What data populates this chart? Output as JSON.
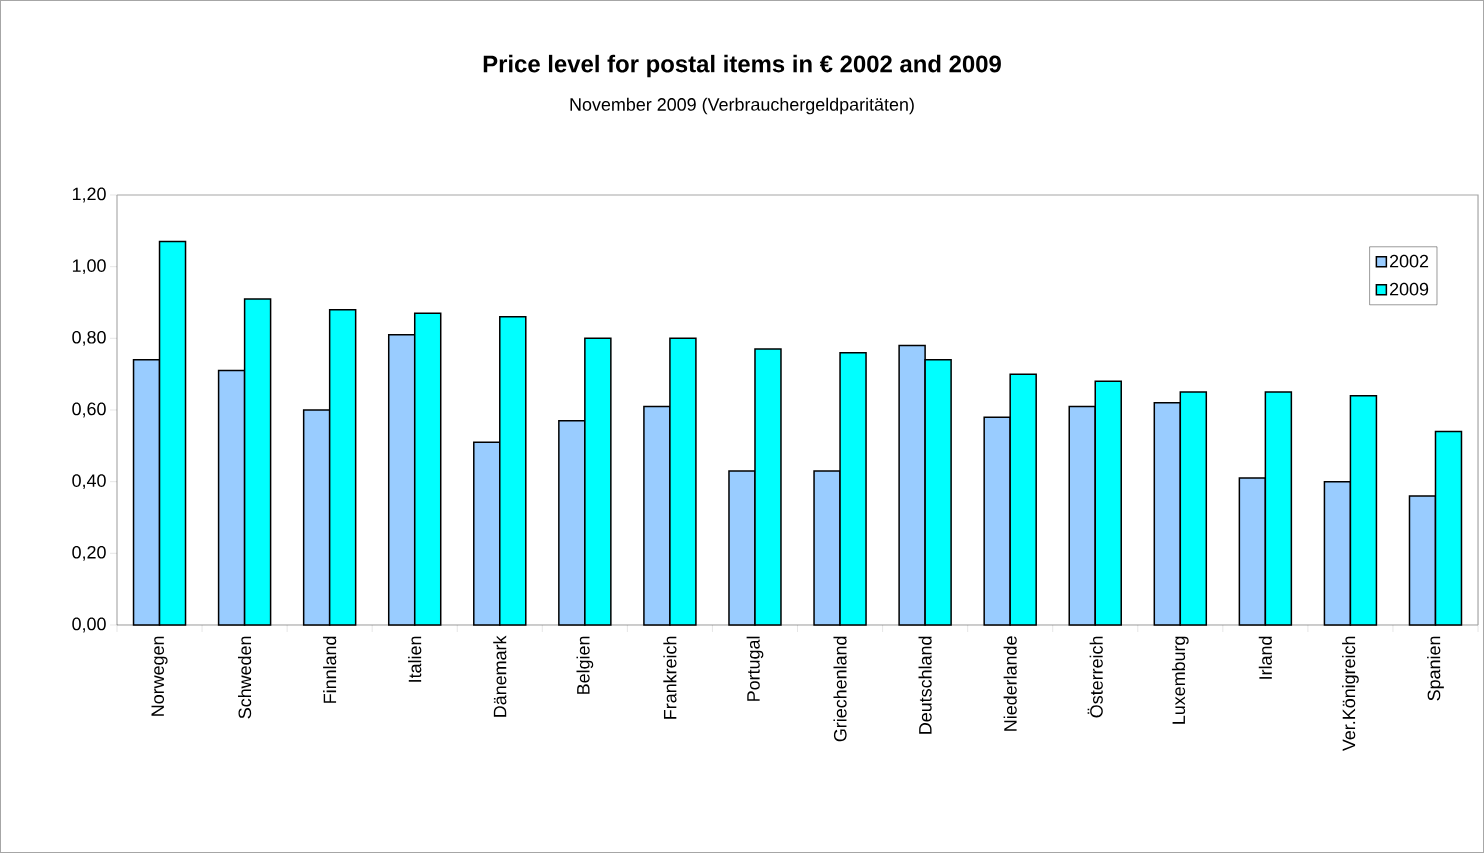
{
  "chart_data": {
    "type": "bar",
    "title": "Price level for postal items in € 2002 and 2009",
    "subtitle": "November 2009 (Verbrauchergeldparitäten)",
    "categories": [
      "Norwegen",
      "Schweden",
      "Finnland",
      "Italien",
      "Dänemark",
      "Belgien",
      "Frankreich",
      "Portugal",
      "Griechenland",
      "Deutschland",
      "Niederlande",
      "Österreich",
      "Luxemburg",
      "Irland",
      "Ver.Königreich",
      "Spanien"
    ],
    "series": [
      {
        "name": "2002",
        "color": "#99ccff",
        "values": [
          0.74,
          0.71,
          0.6,
          0.81,
          0.51,
          0.57,
          0.61,
          0.43,
          0.43,
          0.78,
          0.58,
          0.61,
          0.62,
          0.41,
          0.4,
          0.36
        ]
      },
      {
        "name": "2009",
        "color": "#00ffff",
        "values": [
          1.07,
          0.91,
          0.88,
          0.87,
          0.86,
          0.8,
          0.8,
          0.77,
          0.76,
          0.74,
          0.7,
          0.68,
          0.65,
          0.65,
          0.64,
          0.54
        ]
      }
    ],
    "ylim": [
      0,
      1.2
    ],
    "yticks": [
      {
        "value": 0,
        "label": "0,00"
      },
      {
        "value": 0.2,
        "label": "0,20"
      },
      {
        "value": 0.4,
        "label": "0,40"
      },
      {
        "value": 0.6,
        "label": "0,60"
      },
      {
        "value": 0.8,
        "label": "0,80"
      },
      {
        "value": 1.0,
        "label": "1,00"
      },
      {
        "value": 1.2,
        "label": "1,20"
      }
    ],
    "grid": false,
    "legend": "top right"
  }
}
